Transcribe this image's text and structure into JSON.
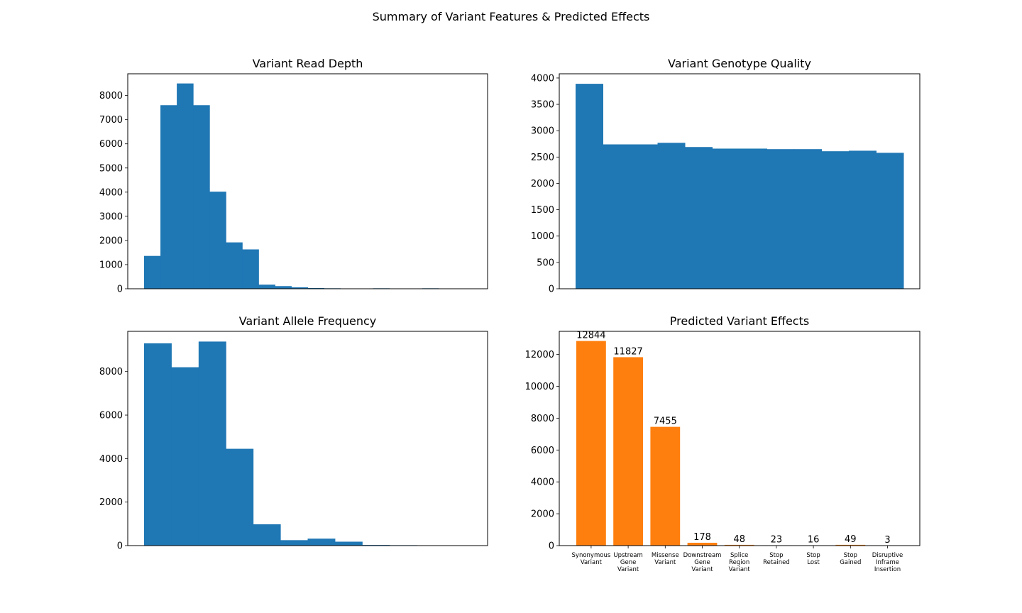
{
  "figure": {
    "suptitle": "Summary of Variant Features & Predicted Effects"
  },
  "chart_data": [
    {
      "id": "read-depth",
      "type": "bar",
      "title": "Variant Read Depth",
      "xlabel": "",
      "ylabel": "",
      "ylim": [
        0,
        8900
      ],
      "yticks": [
        0,
        1000,
        2000,
        3000,
        4000,
        5000,
        6000,
        7000,
        8000
      ],
      "x_ticks_shown": false,
      "color": "#1f77b4",
      "bins": 20,
      "values": [
        1360,
        7600,
        8500,
        7600,
        4020,
        1920,
        1630,
        170,
        110,
        60,
        30,
        20,
        0,
        0,
        20,
        0,
        0,
        20,
        0,
        0
      ],
      "grid": false
    },
    {
      "id": "genotype-quality",
      "type": "bar",
      "title": "Variant Genotype Quality",
      "xlabel": "",
      "ylabel": "",
      "ylim": [
        0,
        4080
      ],
      "yticks": [
        0,
        500,
        1000,
        1500,
        2000,
        2500,
        3000,
        3500,
        4000
      ],
      "x_ticks_shown": false,
      "color": "#1f77b4",
      "bins": 12,
      "values": [
        3890,
        2740,
        2740,
        2770,
        2690,
        2660,
        2660,
        2650,
        2650,
        2610,
        2620,
        2580
      ],
      "grid": false
    },
    {
      "id": "allele-frequency",
      "type": "bar",
      "title": "Variant Allele Frequency",
      "xlabel": "",
      "ylabel": "",
      "ylim": [
        0,
        9850
      ],
      "yticks": [
        0,
        2000,
        4000,
        6000,
        8000
      ],
      "x_ticks_shown": false,
      "color": "#1f77b4",
      "bins": 12,
      "values": [
        9300,
        8200,
        9380,
        4450,
        980,
        250,
        320,
        180,
        30,
        20,
        15,
        10
      ],
      "grid": false
    },
    {
      "id": "variant-effects",
      "type": "bar",
      "title": "Predicted Variant Effects",
      "xlabel": "",
      "ylabel": "",
      "ylim": [
        0,
        13450
      ],
      "yticks": [
        0,
        2000,
        4000,
        6000,
        8000,
        10000,
        12000
      ],
      "color": "#ff7f0e",
      "categories": [
        [
          "Synonymous",
          "Variant"
        ],
        [
          "Upstream",
          "Gene",
          "Variant"
        ],
        [
          "Missense",
          "Variant"
        ],
        [
          "Downstream",
          "Gene",
          "Variant"
        ],
        [
          "Splice",
          "Region",
          "Variant"
        ],
        [
          "Stop",
          "Retained"
        ],
        [
          "Stop",
          "Lost"
        ],
        [
          "Stop",
          "Gained"
        ],
        [
          "Disruptive",
          "Inframe",
          "Insertion"
        ]
      ],
      "values": [
        12844,
        11827,
        7455,
        178,
        48,
        23,
        16,
        49,
        3
      ],
      "data_labels": [
        "12844",
        "11827",
        "7455",
        "178",
        "48",
        "23",
        "16",
        "49",
        "3"
      ],
      "grid": false
    }
  ]
}
